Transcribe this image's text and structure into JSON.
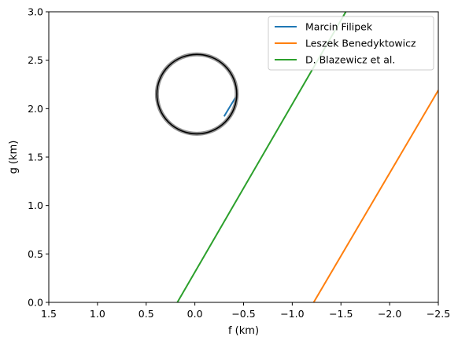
{
  "chart_data": {
    "type": "line",
    "title": "",
    "xlabel": "f (km)",
    "ylabel": "g (km)",
    "xlim": [
      1.5,
      -2.5
    ],
    "ylim": [
      0.0,
      3.0
    ],
    "x_ticks": [
      1.5,
      1.0,
      0.5,
      0.0,
      -0.5,
      -1.0,
      -1.5,
      -2.0,
      -2.5
    ],
    "x_tick_labels": [
      "1.5",
      "1.0",
      "0.5",
      "0.0",
      "−0.5",
      "−1.0",
      "−1.5",
      "−2.0",
      "−2.5"
    ],
    "y_ticks": [
      0.0,
      0.5,
      1.0,
      1.5,
      2.0,
      2.5,
      3.0
    ],
    "y_tick_labels": [
      "0.0",
      "0.5",
      "1.0",
      "1.5",
      "2.0",
      "2.5",
      "3.0"
    ],
    "grid": false,
    "legend_position": "top-right",
    "series": [
      {
        "name": "Marcin Filipek",
        "color": "#1f77b4",
        "points": [
          [
            -0.3,
            1.92
          ],
          [
            -0.42,
            2.12
          ]
        ]
      },
      {
        "name": "Leszek Benedyktowicz",
        "color": "#ff7f0e",
        "points": [
          [
            -1.22,
            0.0
          ],
          [
            -2.5,
            2.19
          ]
        ]
      },
      {
        "name": "D. Blazewicz et al.",
        "color": "#2ca02c",
        "points": [
          [
            0.18,
            0.0
          ],
          [
            -1.55,
            3.0
          ]
        ]
      }
    ],
    "circle": {
      "center": [
        -0.02,
        2.15
      ],
      "radius_x": 0.41,
      "radius_y": 0.41,
      "color": "#000000",
      "halo_color": "#808080"
    }
  }
}
